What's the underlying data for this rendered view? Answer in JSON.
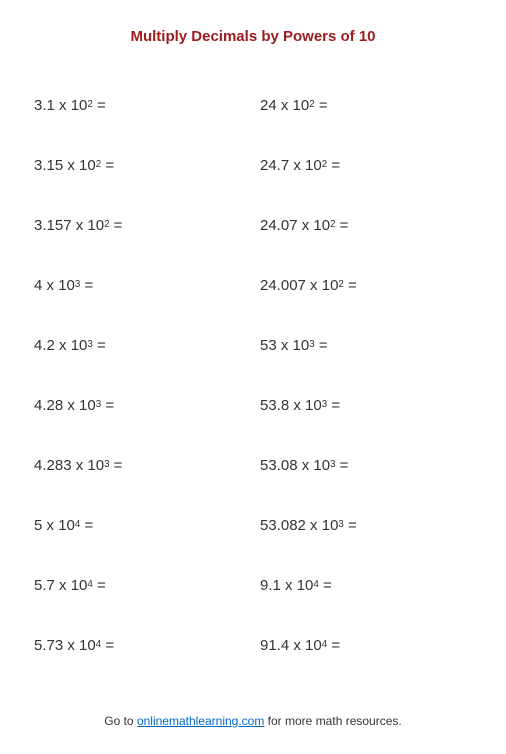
{
  "title": {
    "text": "Multiply Decimals by Powers of 10",
    "color": "#9c1c1c",
    "fontsize": 15
  },
  "problem_style": {
    "fontsize": 15,
    "color": "#333333"
  },
  "left_column": [
    {
      "base": "3.1",
      "power_base": "10",
      "exponent": "2"
    },
    {
      "base": "3.15",
      "power_base": "10",
      "exponent": "2"
    },
    {
      "base": "3.157",
      "power_base": "10",
      "exponent": "2"
    },
    {
      "base": "4",
      "power_base": "10",
      "exponent": "3"
    },
    {
      "base": "4.2",
      "power_base": "10",
      "exponent": "3"
    },
    {
      "base": "4.28",
      "power_base": "10",
      "exponent": "3"
    },
    {
      "base": "4.283",
      "power_base": "10",
      "exponent": "3"
    },
    {
      "base": "5",
      "power_base": "10",
      "exponent": "4"
    },
    {
      "base": "5.7",
      "power_base": "10",
      "exponent": "4"
    },
    {
      "base": "5.73",
      "power_base": "10",
      "exponent": "4"
    }
  ],
  "right_column": [
    {
      "base": "24",
      "power_base": "10",
      "exponent": "2"
    },
    {
      "base": "24.7",
      "power_base": "10",
      "exponent": "2"
    },
    {
      "base": "24.07",
      "power_base": "10",
      "exponent": "2"
    },
    {
      "base": "24.007",
      "power_base": "10",
      "exponent": "2"
    },
    {
      "base": "53",
      "power_base": "10",
      "exponent": "3"
    },
    {
      "base": "53.8",
      "power_base": "10",
      "exponent": "3"
    },
    {
      "base": "53.08",
      "power_base": "10",
      "exponent": "3"
    },
    {
      "base": "53.082",
      "power_base": "10",
      "exponent": "3"
    },
    {
      "base": "9.1",
      "power_base": "10",
      "exponent": "4"
    },
    {
      "base": "91.4",
      "power_base": "10",
      "exponent": "4"
    }
  ],
  "footer": {
    "prefix": "Go to ",
    "link_text": "onlinemathlearning.com",
    "suffix": " for more math resources.",
    "fontsize": 12,
    "text_color": "#333333",
    "link_color": "#0066cc"
  }
}
